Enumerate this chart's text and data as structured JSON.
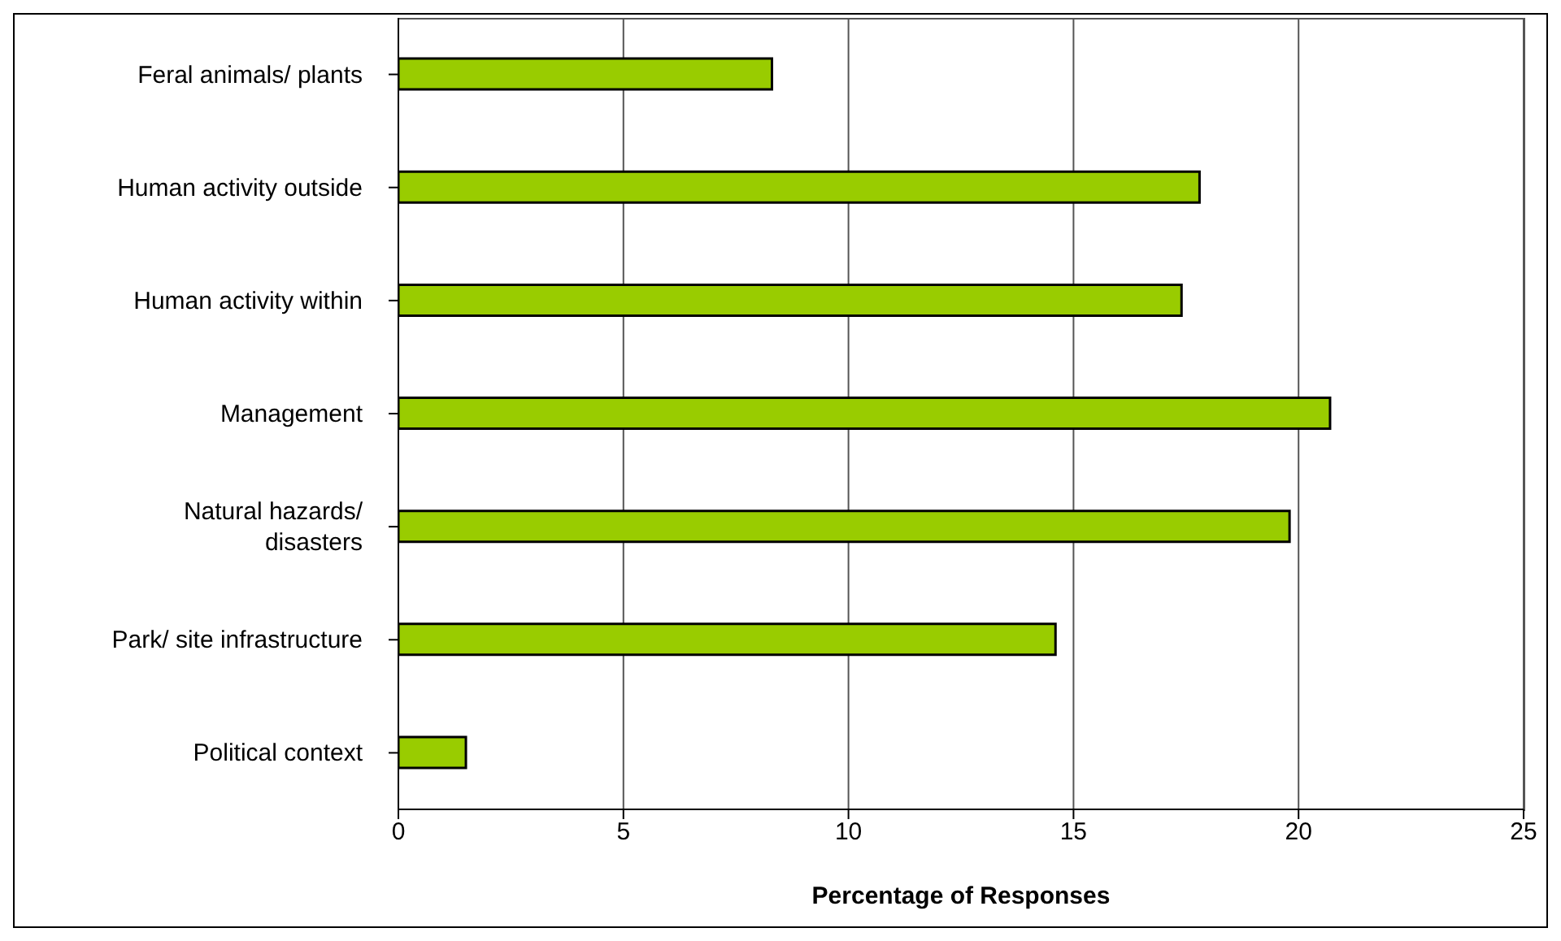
{
  "chart_data": {
    "type": "bar",
    "orientation": "horizontal",
    "xlabel": "Percentage of Responses",
    "categories": [
      "Feral animals/ plants",
      "Human activity outside",
      "Human activity within",
      "Management",
      "Natural hazards/ disasters",
      "Park/ site infrastructure",
      "Political context"
    ],
    "values": [
      8.3,
      17.8,
      17.4,
      20.7,
      19.8,
      14.6,
      1.5
    ],
    "color": "#99cc00",
    "xlim": [
      0,
      25
    ],
    "xticks": [
      0,
      5,
      10,
      15,
      20,
      25
    ],
    "grid": "x"
  }
}
